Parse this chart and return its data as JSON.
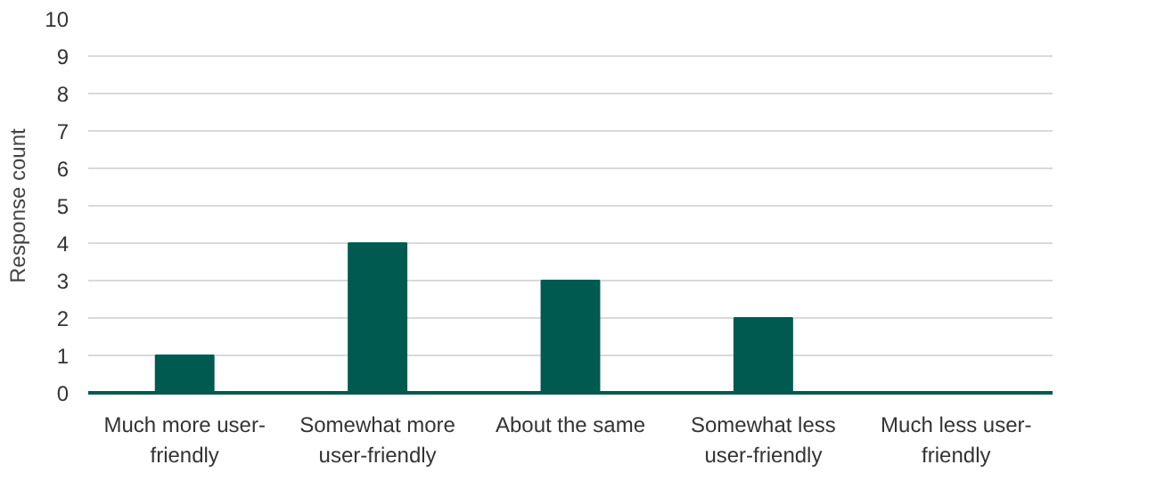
{
  "chart_data": {
    "type": "bar",
    "ylabel": "Response count",
    "categories": [
      "Much more user-friendly",
      "Somewhat more user-friendly",
      "About the same",
      "Somewhat less user-friendly",
      "Much less user-friendly"
    ],
    "values": [
      1,
      4,
      3,
      2,
      0
    ],
    "color": "#005a50",
    "ylim": [
      0,
      10
    ],
    "yticks": [
      0,
      1,
      2,
      3,
      4,
      5,
      6,
      7,
      8,
      9,
      10
    ],
    "grid": "y"
  }
}
